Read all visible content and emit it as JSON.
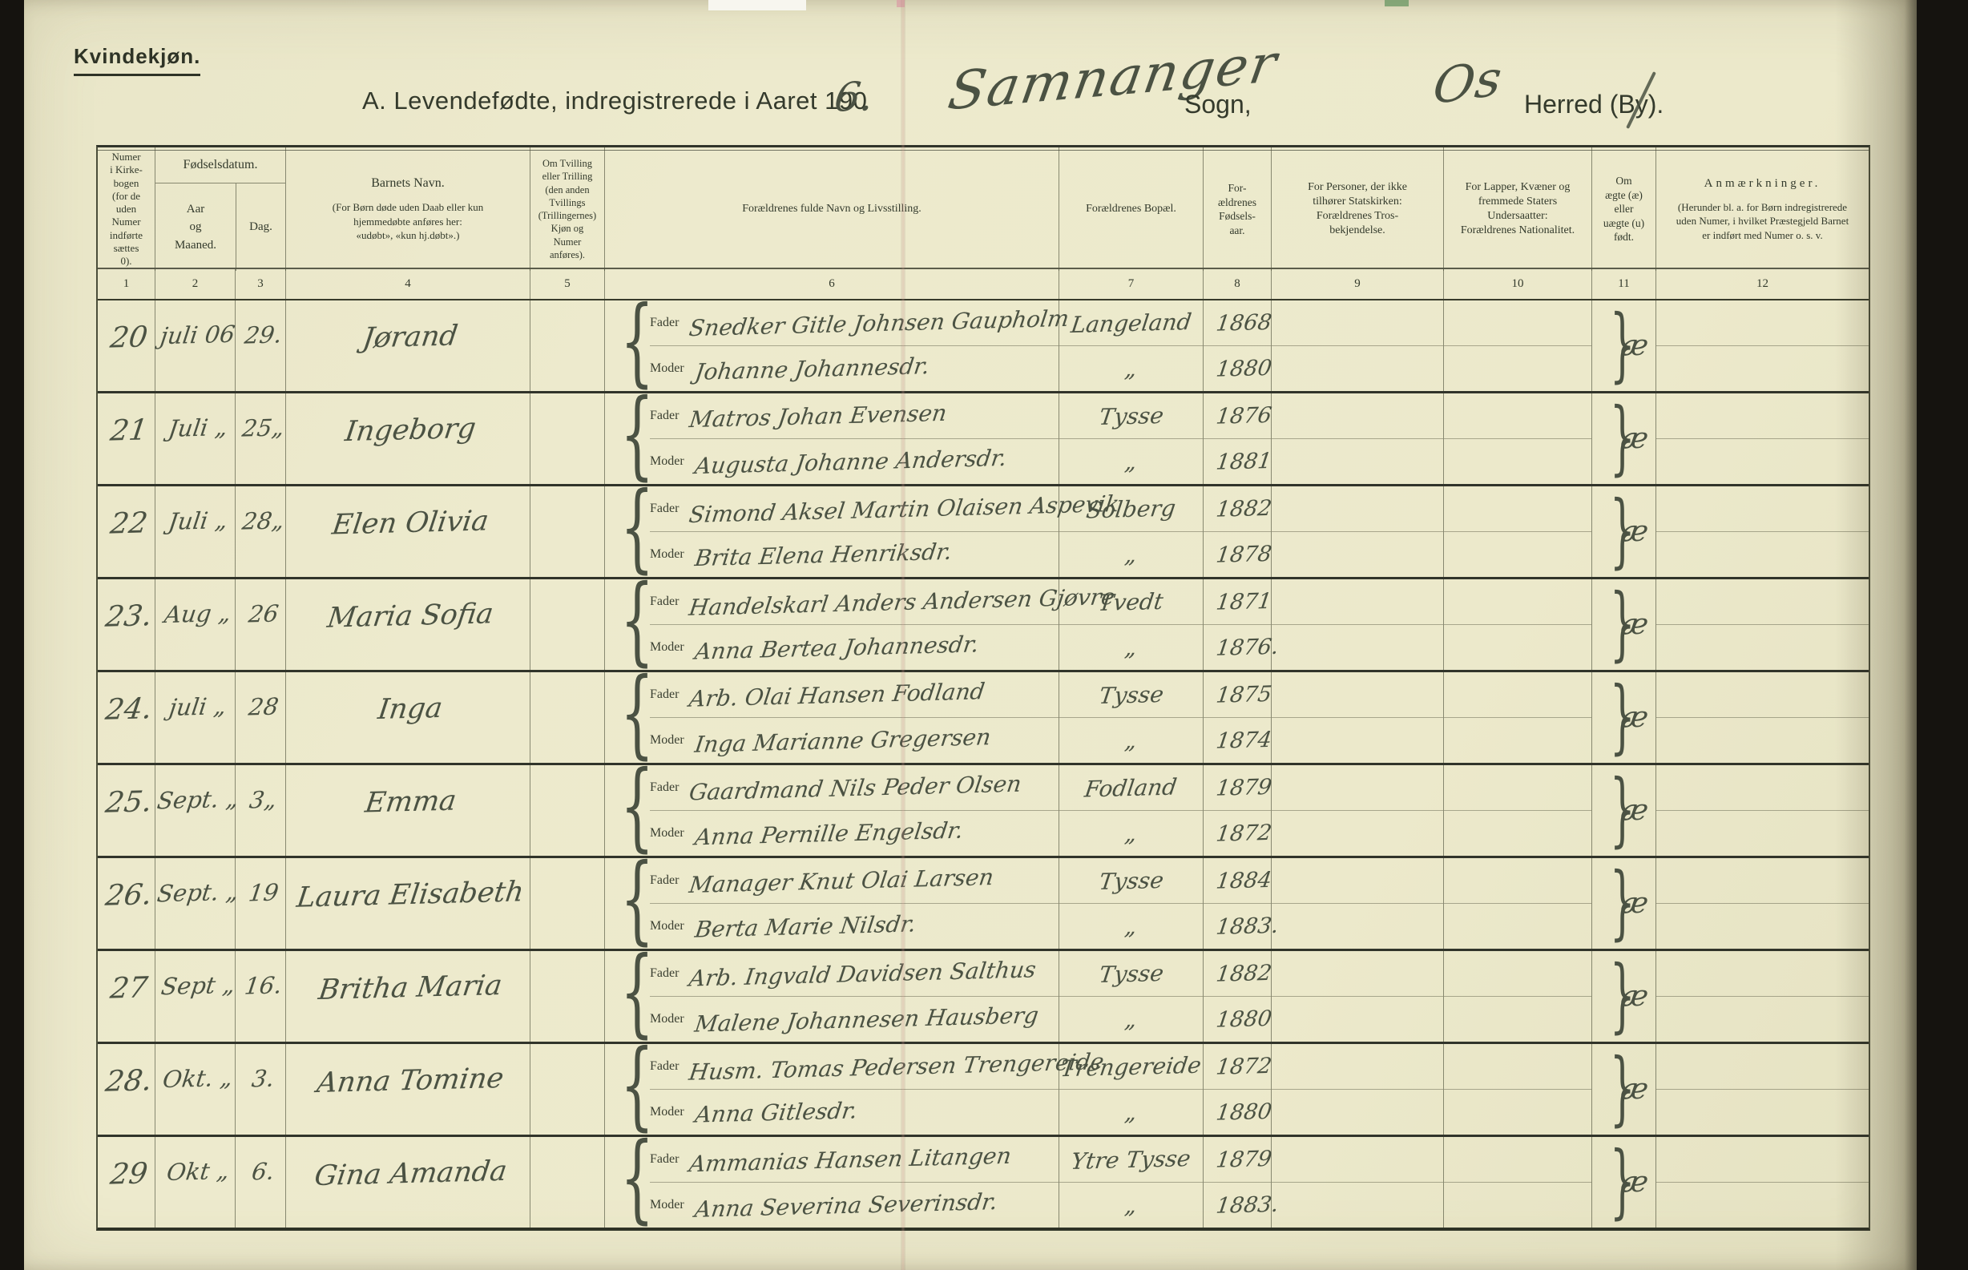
{
  "page": {
    "corner_label": "Kvindekjøn.",
    "title": "A.  Levendefødte, indregistrerede i Aaret 190",
    "year_handwritten": "6.",
    "parish_handwritten": "Samnanger",
    "parish_suffix": "Sogn,",
    "district_handwritten": "Os",
    "district_suffix": "Herred (By)."
  },
  "table": {
    "labels": {
      "father": "Fader",
      "mother": "Moder",
      "brace_left": "{",
      "brace_right": "}"
    },
    "headers": {
      "col1": "Numer\ni Kirke-\nbogen\n(for de\nuden\nNumer\nindførte\nsættes\n0).",
      "col2_group": "Fødselsdatum.",
      "col2": "Aar\nog\nMaaned.",
      "col3": "Dag.",
      "col4_title": "Barnets Navn.",
      "col4_sub": "(For Børn døde uden Daab eller kun\nhjemmedøbte anføres her:\n«udøbt», «kun hj.døbt».)",
      "col5": "Om Tvilling\neller Trilling\n(den anden\nTvillings\n(Trillingernes)\nKjøn og\nNumer\nanføres).",
      "col6": "Forældrenes fulde Navn og Livsstilling.",
      "col7": "Forældrenes Bopæl.",
      "col8": "For-\nældrenes\nFødsels-\naar.",
      "col9": "For Personer, der ikke\ntilhører Statskirken:\nForældrenes Tros-\nbekjendelse.",
      "col10": "For Lapper, Kvæner og\nfremmede Staters\nUndersaatter:\nForældrenes Nationalitet.",
      "col11": "Om\nægte (æ)\neller\nuægte (u)\nfødt.",
      "col12_title": "Anmærkninger.",
      "col12_sub": "(Herunder bl. a. for Børn indregistrerede\nuden Numer, i hvilket Præstegjeld Barnet\ner indført med Numer o. s. v."
    },
    "column_numbers": [
      "1",
      "2",
      "3",
      "4",
      "5",
      "6",
      "7",
      "8",
      "9",
      "10",
      "11",
      "12"
    ],
    "rows": [
      {
        "number": "20",
        "month": "juli 06",
        "day": "29.",
        "name": "Jørand",
        "twin": "",
        "father": "Snedker Gitle Johnsen Gaupholm",
        "mother": "Johanne Johannesdr.",
        "father_residence": "Langeland",
        "mother_residence": "„",
        "father_year": "1868",
        "mother_year": "1880",
        "creed": "",
        "nationality": "",
        "legitimacy": "æ",
        "remarks": ""
      },
      {
        "number": "21",
        "month": "Juli „",
        "day": "25„",
        "name": "Ingeborg",
        "twin": "",
        "father": "Matros Johan Evensen",
        "mother": "Augusta Johanne Andersdr.",
        "father_residence": "Tysse",
        "mother_residence": "„",
        "father_year": "1876",
        "mother_year": "1881",
        "creed": "",
        "nationality": "",
        "legitimacy": "æ",
        "remarks": ""
      },
      {
        "number": "22",
        "month": "Juli „",
        "day": "28„",
        "name": "Elen Olivia",
        "twin": "",
        "father": "Simond Aksel Martin Olaisen Aspevik",
        "mother": "Brita Elena Henriksdr.",
        "father_residence": "Solberg",
        "mother_residence": "„",
        "father_year": "1882",
        "mother_year": "1878",
        "creed": "",
        "nationality": "",
        "legitimacy": "æ",
        "remarks": ""
      },
      {
        "number": "23.",
        "month": "Aug „",
        "day": "26",
        "name": "Maria Sofia",
        "twin": "",
        "father": "Handelskarl Anders Andersen Gjøvre",
        "mother": "Anna Bertea Johannesdr.",
        "father_residence": "Tvedt",
        "mother_residence": "„",
        "father_year": "1871",
        "mother_year": "1876.",
        "creed": "",
        "nationality": "",
        "legitimacy": "æ",
        "remarks": ""
      },
      {
        "number": "24.",
        "month": "juli „",
        "day": "28",
        "name": "Inga",
        "twin": "",
        "father": "Arb. Olai Hansen Fodland",
        "mother": "Inga Marianne Gregersen",
        "father_residence": "Tysse",
        "mother_residence": "„",
        "father_year": "1875",
        "mother_year": "1874",
        "creed": "",
        "nationality": "",
        "legitimacy": "æ",
        "remarks": ""
      },
      {
        "number": "25.",
        "month": "Sept. „",
        "day": "3„",
        "name": "Emma",
        "twin": "",
        "father": "Gaardmand Nils Peder Olsen",
        "mother": "Anna Pernille Engelsdr.",
        "father_residence": "Fodland",
        "mother_residence": "„",
        "father_year": "1879",
        "mother_year": "1872",
        "creed": "",
        "nationality": "",
        "legitimacy": "æ",
        "remarks": ""
      },
      {
        "number": "26.",
        "month": "Sept. „",
        "day": "19",
        "name": "Laura Elisabeth",
        "twin": "",
        "father": "Manager Knut Olai Larsen",
        "mother": "Berta Marie Nilsdr.",
        "father_residence": "Tysse",
        "mother_residence": "„",
        "father_year": "1884",
        "mother_year": "1883.",
        "creed": "",
        "nationality": "",
        "legitimacy": "æ",
        "remarks": ""
      },
      {
        "number": "27",
        "month": "Sept „",
        "day": "16.",
        "name": "Britha Maria",
        "twin": "",
        "father": "Arb. Ingvald Davidsen Salthus",
        "mother": "Malene Johannesen Hausberg",
        "father_residence": "Tysse",
        "mother_residence": "„",
        "father_year": "1882",
        "mother_year": "1880",
        "creed": "",
        "nationality": "",
        "legitimacy": "æ",
        "remarks": ""
      },
      {
        "number": "28.",
        "month": "Okt. „",
        "day": "3.",
        "name": "Anna Tomine",
        "twin": "",
        "father": "Husm. Tomas Pedersen Trengereide",
        "mother": "Anna Gitlesdr.",
        "father_residence": "Trengereide",
        "mother_residence": "„",
        "father_year": "1872",
        "mother_year": "1880",
        "creed": "",
        "nationality": "",
        "legitimacy": "æ",
        "remarks": ""
      },
      {
        "number": "29",
        "month": "Okt „",
        "day": "6.",
        "name": "Gina Amanda",
        "twin": "",
        "father": "Ammanias Hansen Litangen",
        "mother": "Anna Severina Severinsdr.",
        "father_residence": "Ytre Tysse",
        "mother_residence": "„",
        "father_year": "1879",
        "mother_year": "1883.",
        "creed": "",
        "nationality": "",
        "legitimacy": "æ",
        "remarks": ""
      }
    ]
  }
}
